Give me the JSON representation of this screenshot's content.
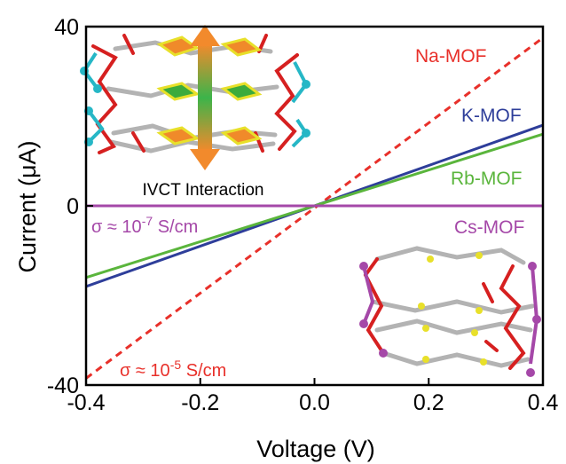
{
  "chart_data": {
    "type": "line",
    "xlabel": "Voltage (V)",
    "ylabel": "Current (μA)",
    "xlim": [
      -0.4,
      0.4
    ],
    "ylim": [
      -40,
      40
    ],
    "xticks": [
      "-0.4",
      "-0.2",
      "0.0",
      "0.2",
      "0.4"
    ],
    "xtick_values": [
      -0.4,
      -0.2,
      0.0,
      0.2,
      0.4
    ],
    "yticks": [
      "-40",
      "0",
      "40"
    ],
    "ytick_values": [
      -40,
      0,
      40
    ],
    "grid": false,
    "series": [
      {
        "name": "Na-MOF",
        "color": "#e8302a",
        "dash": "dashed",
        "x": [
          -0.4,
          0.4
        ],
        "y": [
          -38.5,
          37.5
        ]
      },
      {
        "name": "K-MOF",
        "color": "#2e3e9a",
        "dash": "solid",
        "x": [
          -0.4,
          0.4
        ],
        "y": [
          -18.0,
          18.0
        ]
      },
      {
        "name": "Rb-MOF",
        "color": "#5ab53c",
        "dash": "solid",
        "x": [
          -0.4,
          0.4
        ],
        "y": [
          -16.0,
          16.0
        ]
      },
      {
        "name": "Cs-MOF",
        "color": "#a548a8",
        "dash": "solid",
        "x": [
          -0.4,
          0.4
        ],
        "y": [
          0.0,
          0.0
        ]
      }
    ],
    "annotations": {
      "cs_sigma": {
        "sigma": "σ ≈ 10",
        "exp": "-7",
        "unit": " S/cm",
        "color": "#a548a8"
      },
      "na_sigma": {
        "sigma": "σ ≈ 10",
        "exp": "-5",
        "unit": " S/cm",
        "color": "#e8302a"
      },
      "ivct": "IVCT Interaction"
    },
    "insets": [
      {
        "name": "structure-top-left",
        "atom_color": "#1ab6c4",
        "linker_color": "#e8302a"
      },
      {
        "name": "structure-bottom-right",
        "atom_color": "#a548a8",
        "linker_color": "#e8302a"
      }
    ]
  }
}
